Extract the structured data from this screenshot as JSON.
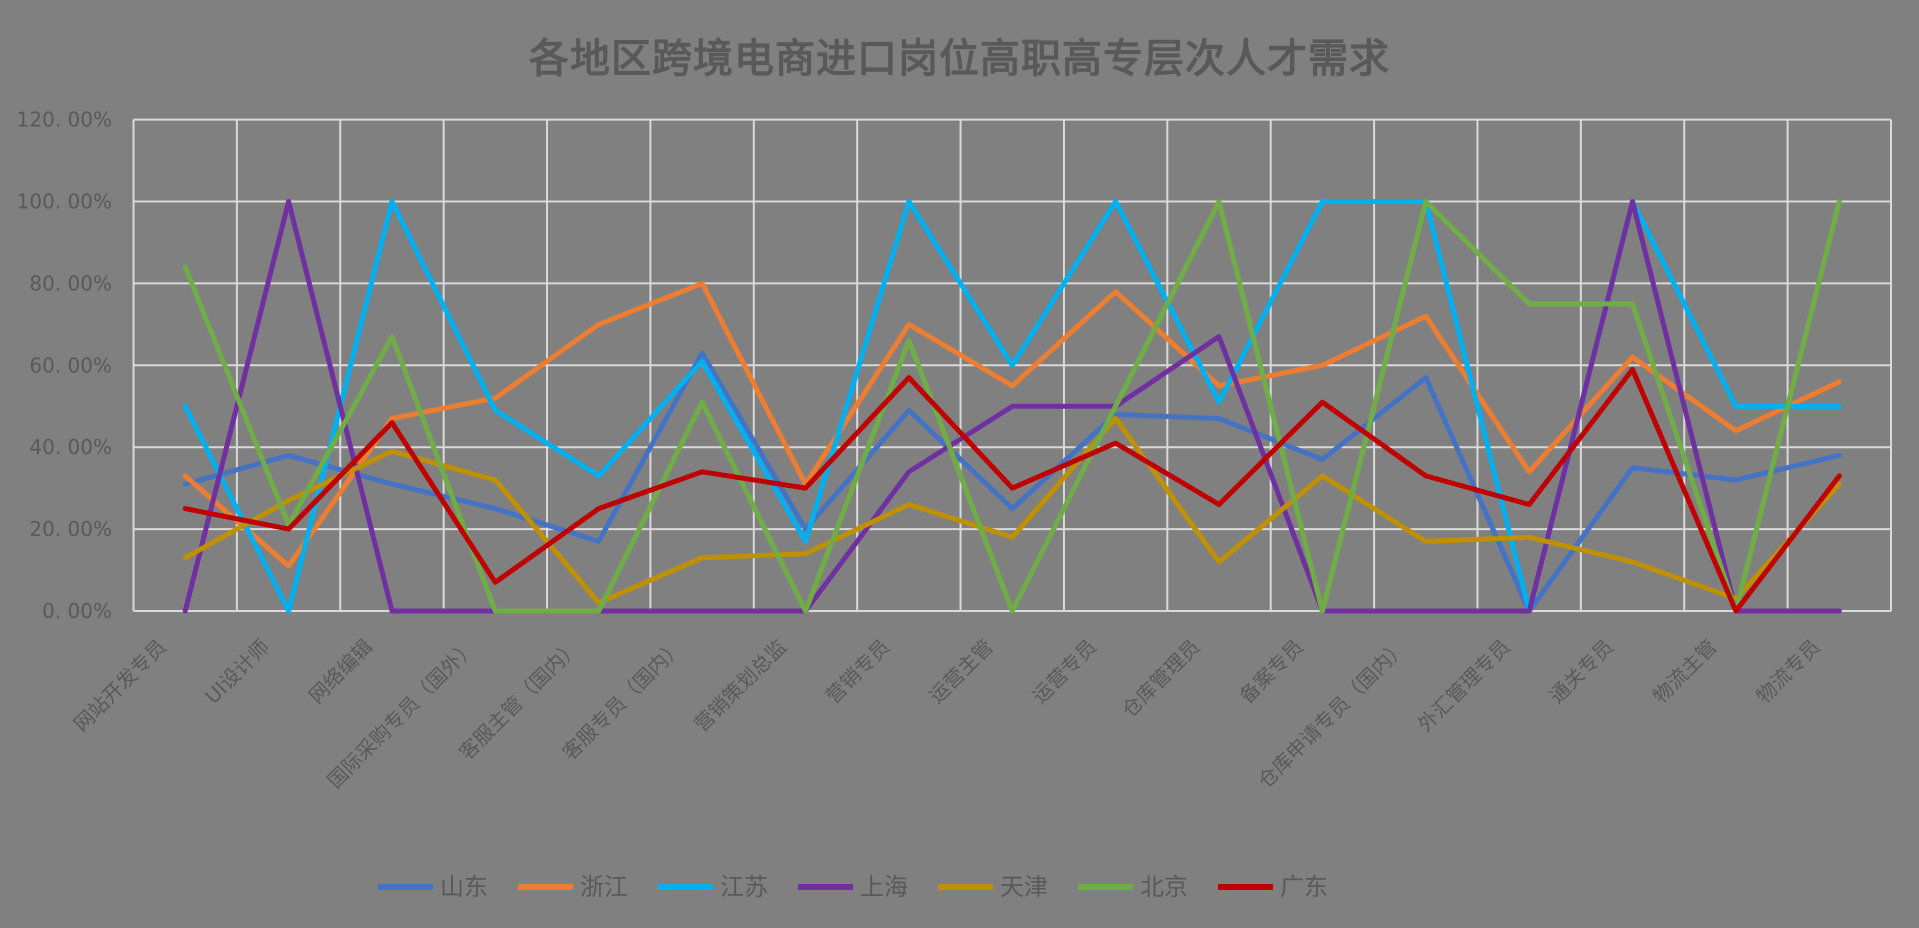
{
  "page": {
    "background_color": "#808080",
    "text_color": "#595959",
    "gridline_color": "#D9D9D9"
  },
  "chart_data": {
    "type": "line",
    "title": "各地区跨境电商进口岗位高职高专层次人才需求",
    "categories": [
      "网站开发专员",
      "UI设计师",
      "网络编辑",
      "国际采购专员（国外）",
      "客服主管（国内）",
      "客服专员（国内）",
      "营销策划总监",
      "营销专员",
      "运营主管",
      "运营专员",
      "仓库管理员",
      "备案专员",
      "仓库申请专员（国内）",
      "外汇管理专员",
      "通关专员",
      "物流主管",
      "物流专员"
    ],
    "series": [
      {
        "name": "山东",
        "color": "#4472C4",
        "values": [
          31,
          38,
          31,
          25,
          17,
          63,
          20,
          49,
          25,
          48,
          47,
          37,
          57,
          0,
          35,
          32,
          38
        ]
      },
      {
        "name": "浙江",
        "color": "#ED7D31",
        "values": [
          33,
          11,
          47,
          52,
          70,
          80,
          31,
          70,
          55,
          78,
          55,
          60,
          72,
          34,
          62,
          44,
          56
        ]
      },
      {
        "name": "江苏",
        "color": "#00B0F0",
        "values": [
          50,
          0,
          100,
          49,
          33,
          61,
          17,
          100,
          60,
          100,
          51,
          100,
          100,
          0,
          100,
          50,
          50
        ]
      },
      {
        "name": "上海",
        "color": "#7030A0",
        "values": [
          0,
          100,
          0,
          0,
          0,
          0,
          0,
          34,
          50,
          50,
          67,
          0,
          0,
          0,
          100,
          0,
          0
        ]
      },
      {
        "name": "天津",
        "color": "#BF9000",
        "values": [
          13,
          27,
          39,
          32,
          2,
          13,
          14,
          26,
          18,
          47,
          12,
          33,
          17,
          18,
          12,
          3,
          31
        ]
      },
      {
        "name": "北京",
        "color": "#70AD47",
        "values": [
          84,
          21,
          67,
          0,
          0,
          51,
          0,
          66,
          0,
          50,
          100,
          0,
          100,
          75,
          75,
          0,
          100
        ]
      },
      {
        "name": "广东",
        "color": "#C00000",
        "values": [
          25,
          20,
          46,
          7,
          25,
          34,
          30,
          57,
          30,
          41,
          26,
          51,
          33,
          26,
          59,
          0,
          33
        ]
      }
    ],
    "xlabel": "",
    "ylabel": "",
    "y_axis": {
      "min": 0,
      "max": 120,
      "step": 20,
      "unit": "%",
      "tick_labels": [
        "0. 00%",
        "20. 00%",
        "40. 00%",
        "60. 00%",
        "80. 00%",
        "100. 00%",
        "120. 00%"
      ]
    },
    "x_axis": {
      "label_rotation_deg": -45
    },
    "legend": {
      "position": "bottom",
      "entries": [
        "山东",
        "浙江",
        "江苏",
        "上海",
        "天津",
        "北京",
        "广东"
      ]
    },
    "grid": true,
    "ylim": [
      0,
      120
    ]
  }
}
